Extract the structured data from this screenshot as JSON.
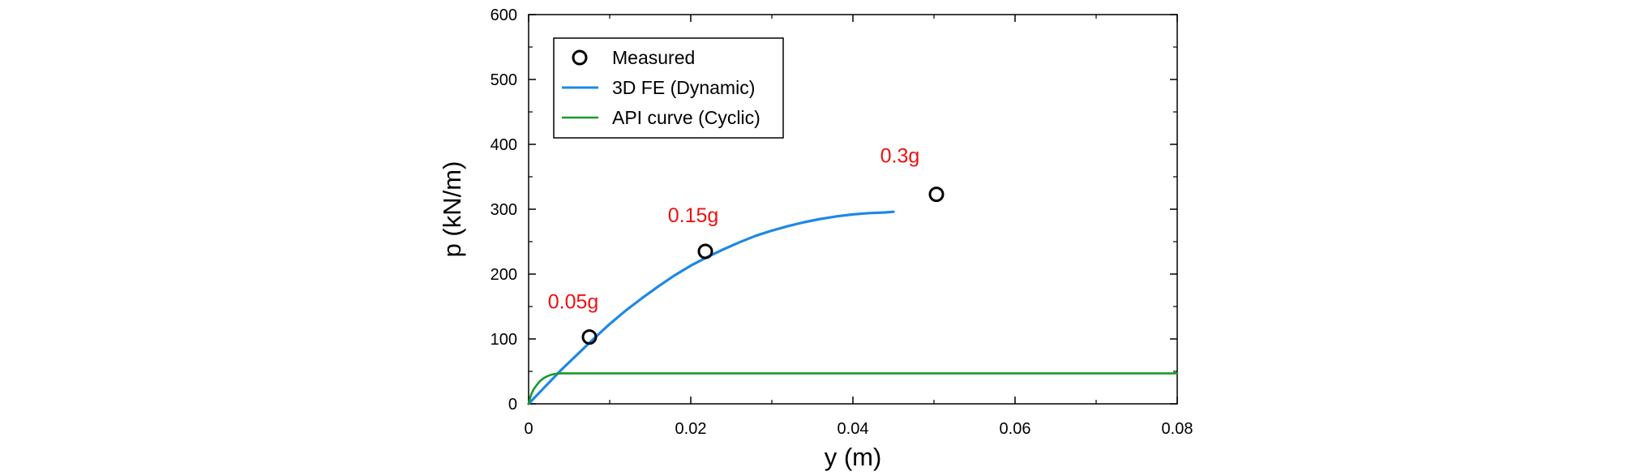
{
  "chart_data": {
    "type": "line",
    "title": "",
    "xlabel": "y (m)",
    "ylabel": "p (kN/m)",
    "xlim": [
      0,
      0.08
    ],
    "ylim": [
      0,
      600
    ],
    "xticks": [
      0,
      0.02,
      0.04,
      0.06,
      0.08
    ],
    "xtick_labels": [
      "0",
      "0.02",
      "0.04",
      "0.06",
      "0.08"
    ],
    "yticks": [
      0,
      100,
      200,
      300,
      400,
      500,
      600
    ],
    "ytick_labels": [
      "0",
      "100",
      "200",
      "300",
      "400",
      "500",
      "600"
    ],
    "grid": false,
    "legend_position": "top-left",
    "series": [
      {
        "name": "Measured",
        "kind": "scatter",
        "marker": "open-circle",
        "color": "#000000",
        "x": [
          0.0075,
          0.0218,
          0.0503
        ],
        "y": [
          103,
          235,
          323
        ]
      },
      {
        "name": "3D FE (Dynamic)",
        "kind": "line",
        "color": "#1e88e5",
        "x": [
          0,
          0.002,
          0.004,
          0.006,
          0.008,
          0.01,
          0.012,
          0.014,
          0.016,
          0.018,
          0.02,
          0.022,
          0.024,
          0.026,
          0.028,
          0.03,
          0.032,
          0.034,
          0.036,
          0.038,
          0.04,
          0.042,
          0.044,
          0.045
        ],
        "y": [
          0,
          26,
          52,
          76,
          100,
          123,
          144,
          163,
          181,
          198,
          213,
          226,
          238,
          249,
          259,
          267,
          274,
          280,
          285,
          289,
          292,
          294,
          295,
          296
        ]
      },
      {
        "name": "API curve (Cyclic)",
        "kind": "line",
        "color": "#1a9a2a",
        "x": [
          0,
          0.0003,
          0.0006,
          0.001,
          0.0014,
          0.0018,
          0.0022,
          0.0026,
          0.003,
          0.0035,
          0.004,
          0.005,
          0.006,
          0.01,
          0.02,
          0.04,
          0.06,
          0.08
        ],
        "y": [
          0,
          14,
          22,
          29,
          35,
          39,
          42,
          44,
          45.5,
          46.5,
          47,
          47,
          47,
          47,
          47,
          47,
          47,
          47
        ]
      }
    ],
    "annotations": [
      {
        "text": "0.05g",
        "x": 0.0055,
        "y": 147,
        "color": "#ee1111"
      },
      {
        "text": "0.15g",
        "x": 0.0203,
        "y": 280,
        "color": "#ee1111"
      },
      {
        "text": "0.3g",
        "x": 0.0458,
        "y": 372,
        "color": "#ee1111"
      }
    ]
  }
}
